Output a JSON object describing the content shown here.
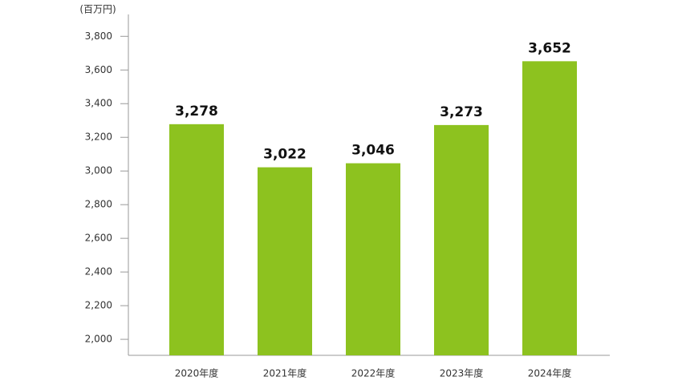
{
  "chart_data": {
    "type": "bar",
    "unit_label": "(百万円)",
    "categories": [
      "2020年度",
      "2021年度",
      "2022年度",
      "2023年度",
      "2024年度"
    ],
    "values": [
      3278,
      3022,
      3046,
      3273,
      3652
    ],
    "value_labels": [
      "3,278",
      "3,022",
      "3,046",
      "3,273",
      "3,652"
    ],
    "color": "#8dc21f",
    "ylim": [
      1905,
      3930
    ],
    "yticks": [
      {
        "value": 2000,
        "label": "2,000"
      },
      {
        "value": 2200,
        "label": "2,200"
      },
      {
        "value": 2400,
        "label": "2,400"
      },
      {
        "value": 2600,
        "label": "2,600"
      },
      {
        "value": 2800,
        "label": "2,800"
      },
      {
        "value": 3000,
        "label": "3,000"
      },
      {
        "value": 3200,
        "label": "3,200"
      },
      {
        "value": 3400,
        "label": "3,400"
      },
      {
        "value": 3600,
        "label": "3,600"
      },
      {
        "value": 3800,
        "label": "3,800"
      }
    ],
    "grid": false
  }
}
